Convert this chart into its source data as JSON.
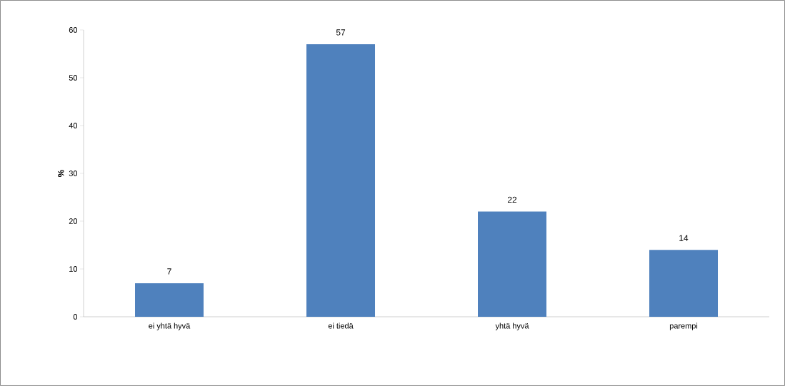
{
  "chart_data": {
    "type": "bar",
    "ylabel": "%",
    "categories": [
      "ei yhtä hyvä",
      "ei tiedä",
      "yhtä hyvä",
      "parempi"
    ],
    "values": [
      7,
      57,
      22,
      14
    ],
    "color": "#4f81bd",
    "ylim": [
      0,
      60
    ],
    "yticks": [
      0,
      10,
      20,
      30,
      40,
      50,
      60
    ],
    "data_labels": true,
    "grid": false
  }
}
